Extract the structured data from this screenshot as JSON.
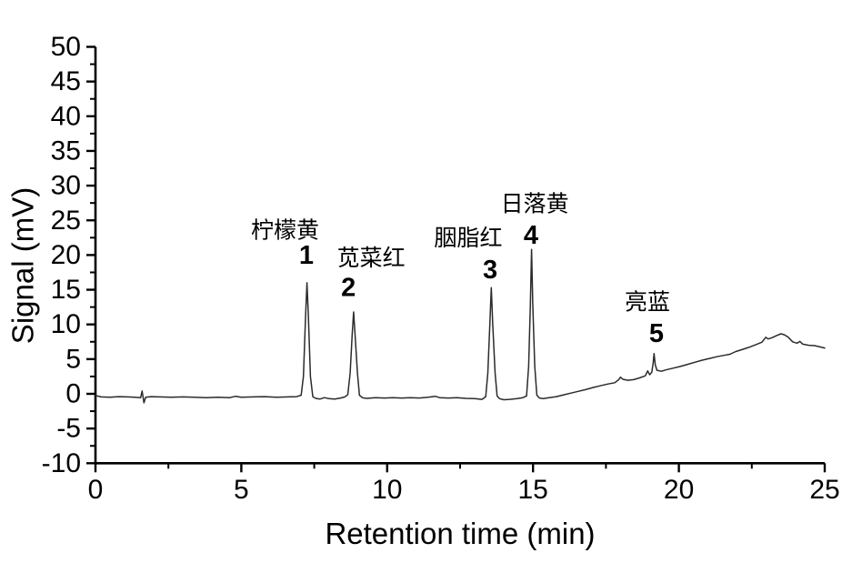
{
  "figure": {
    "background": "#ffffff"
  },
  "chart_data": {
    "type": "line",
    "title": "",
    "xlabel": "Retention time (min)",
    "ylabel": "Signal (mV)",
    "xlim": [
      0,
      25
    ],
    "ylim": [
      -10,
      50
    ],
    "grid": false,
    "legend": "none",
    "colors": {
      "trace": "#2b2b2b",
      "axis": "#000000",
      "text": "#000000",
      "background": "#ffffff"
    },
    "x_axis": {
      "label": "Retention time (min)",
      "min": 0,
      "max": 25,
      "major_tick_step": 5,
      "minor_tick_step": 2.5,
      "tick_labels": [
        "0",
        "5",
        "10",
        "15",
        "20",
        "25"
      ],
      "tick_values": [
        0,
        5,
        10,
        15,
        20,
        25
      ]
    },
    "y_axis": {
      "label": "Signal (mV)",
      "min": -10,
      "max": 50,
      "major_tick_step": 5,
      "minor_tick_step": 2.5,
      "tick_labels": [
        "-10",
        "-5",
        "0",
        "5",
        "10",
        "15",
        "20",
        "25",
        "30",
        "35",
        "40",
        "45",
        "50"
      ],
      "tick_values": [
        -10,
        -5,
        0,
        5,
        10,
        15,
        20,
        25,
        30,
        35,
        40,
        45,
        50
      ]
    },
    "peaks": [
      {
        "number": "1",
        "name": "柠檬黄",
        "retention_time_min": 7.25,
        "height_mV": 16.0,
        "name_pos": [
          6.5,
          23.5
        ],
        "num_pos": [
          7.23,
          19.9
        ]
      },
      {
        "number": "2",
        "name": "苋菜红",
        "retention_time_min": 8.85,
        "height_mV": 11.8,
        "name_pos": [
          9.45,
          19.5
        ],
        "num_pos": [
          8.67,
          15.3
        ]
      },
      {
        "number": "3",
        "name": "胭脂红",
        "retention_time_min": 13.57,
        "height_mV": 15.3,
        "name_pos": [
          12.78,
          22.4
        ],
        "num_pos": [
          13.53,
          17.8
        ]
      },
      {
        "number": "4",
        "name": "日落黄",
        "retention_time_min": 14.95,
        "height_mV": 20.8,
        "name_pos": [
          15.06,
          27.3
        ],
        "num_pos": [
          14.93,
          22.8
        ]
      },
      {
        "number": "5",
        "name": "亮蓝",
        "retention_time_min": 19.15,
        "height_mV": 5.8,
        "name_pos": [
          18.92,
          13.2
        ],
        "num_pos": [
          19.23,
          8.65
        ]
      }
    ],
    "trace": [
      [
        0,
        -0.25
      ],
      [
        0.2,
        -0.45
      ],
      [
        0.5,
        -0.5
      ],
      [
        0.8,
        -0.4
      ],
      [
        1.1,
        -0.45
      ],
      [
        1.35,
        -0.5
      ],
      [
        1.55,
        -0.55
      ],
      [
        1.6,
        0.4
      ],
      [
        1.66,
        -1.3
      ],
      [
        1.72,
        -0.5
      ],
      [
        1.9,
        -0.4
      ],
      [
        2.2,
        -0.45
      ],
      [
        2.6,
        -0.5
      ],
      [
        3.0,
        -0.45
      ],
      [
        3.4,
        -0.5
      ],
      [
        3.8,
        -0.55
      ],
      [
        4.2,
        -0.5
      ],
      [
        4.6,
        -0.55
      ],
      [
        4.8,
        -0.35
      ],
      [
        5.0,
        -0.5
      ],
      [
        5.4,
        -0.45
      ],
      [
        5.8,
        -0.4
      ],
      [
        6.2,
        -0.5
      ],
      [
        6.6,
        -0.45
      ],
      [
        6.9,
        -0.4
      ],
      [
        7.05,
        -0.2
      ],
      [
        7.13,
        2.5
      ],
      [
        7.2,
        11
      ],
      [
        7.25,
        16.0
      ],
      [
        7.3,
        11
      ],
      [
        7.37,
        2.5
      ],
      [
        7.45,
        -0.4
      ],
      [
        7.55,
        -0.65
      ],
      [
        7.7,
        -0.75
      ],
      [
        7.85,
        -0.55
      ],
      [
        8.0,
        -0.7
      ],
      [
        8.2,
        -0.75
      ],
      [
        8.4,
        -0.6
      ],
      [
        8.55,
        -0.45
      ],
      [
        8.65,
        -0.1
      ],
      [
        8.73,
        3
      ],
      [
        8.8,
        8.5
      ],
      [
        8.85,
        11.8
      ],
      [
        8.9,
        8.5
      ],
      [
        8.98,
        3
      ],
      [
        9.05,
        -0.2
      ],
      [
        9.15,
        -0.55
      ],
      [
        9.3,
        -0.65
      ],
      [
        9.6,
        -0.55
      ],
      [
        9.9,
        -0.6
      ],
      [
        10.2,
        -0.55
      ],
      [
        10.5,
        -0.6
      ],
      [
        10.8,
        -0.55
      ],
      [
        11.1,
        -0.6
      ],
      [
        11.4,
        -0.5
      ],
      [
        11.65,
        -0.35
      ],
      [
        11.8,
        -0.55
      ],
      [
        12.1,
        -0.6
      ],
      [
        12.4,
        -0.55
      ],
      [
        12.7,
        -0.65
      ],
      [
        13.0,
        -0.7
      ],
      [
        13.25,
        -0.8
      ],
      [
        13.38,
        -0.4
      ],
      [
        13.45,
        3
      ],
      [
        13.52,
        10
      ],
      [
        13.57,
        15.3
      ],
      [
        13.62,
        10
      ],
      [
        13.7,
        3
      ],
      [
        13.77,
        -0.3
      ],
      [
        13.85,
        -0.7
      ],
      [
        14.0,
        -0.85
      ],
      [
        14.2,
        -0.8
      ],
      [
        14.45,
        -0.7
      ],
      [
        14.65,
        -0.55
      ],
      [
        14.78,
        -0.3
      ],
      [
        14.85,
        4
      ],
      [
        14.91,
        13
      ],
      [
        14.95,
        20.8
      ],
      [
        14.99,
        13
      ],
      [
        15.06,
        4
      ],
      [
        15.13,
        -0.2
      ],
      [
        15.22,
        -0.6
      ],
      [
        15.35,
        -0.7
      ],
      [
        15.55,
        -0.55
      ],
      [
        15.8,
        -0.4
      ],
      [
        16.05,
        -0.15
      ],
      [
        16.3,
        0.1
      ],
      [
        16.55,
        0.35
      ],
      [
        16.8,
        0.6
      ],
      [
        17.05,
        0.9
      ],
      [
        17.3,
        1.15
      ],
      [
        17.55,
        1.4
      ],
      [
        17.8,
        1.6
      ],
      [
        17.93,
        2.0
      ],
      [
        18.0,
        2.4
      ],
      [
        18.08,
        2.1
      ],
      [
        18.25,
        1.95
      ],
      [
        18.45,
        2.05
      ],
      [
        18.65,
        2.3
      ],
      [
        18.85,
        2.6
      ],
      [
        18.93,
        3.3
      ],
      [
        19.0,
        2.75
      ],
      [
        19.07,
        3.1
      ],
      [
        19.12,
        4.5
      ],
      [
        19.15,
        5.8
      ],
      [
        19.19,
        4.2
      ],
      [
        19.25,
        3.4
      ],
      [
        19.4,
        3.25
      ],
      [
        19.55,
        3.45
      ],
      [
        19.8,
        3.7
      ],
      [
        20.05,
        3.95
      ],
      [
        20.3,
        4.25
      ],
      [
        20.55,
        4.55
      ],
      [
        20.8,
        4.85
      ],
      [
        21.05,
        5.1
      ],
      [
        21.3,
        5.35
      ],
      [
        21.55,
        5.55
      ],
      [
        21.75,
        5.7
      ],
      [
        21.95,
        6.1
      ],
      [
        22.15,
        6.35
      ],
      [
        22.4,
        6.7
      ],
      [
        22.65,
        7.1
      ],
      [
        22.85,
        7.45
      ],
      [
        22.98,
        8.15
      ],
      [
        23.06,
        7.9
      ],
      [
        23.2,
        8.1
      ],
      [
        23.35,
        8.4
      ],
      [
        23.5,
        8.65
      ],
      [
        23.62,
        8.5
      ],
      [
        23.75,
        8.15
      ],
      [
        23.9,
        7.5
      ],
      [
        24.05,
        7.3
      ],
      [
        24.15,
        7.55
      ],
      [
        24.25,
        7.15
      ],
      [
        24.45,
        7.0
      ],
      [
        24.65,
        6.95
      ],
      [
        24.8,
        6.8
      ],
      [
        25,
        6.6
      ]
    ]
  }
}
